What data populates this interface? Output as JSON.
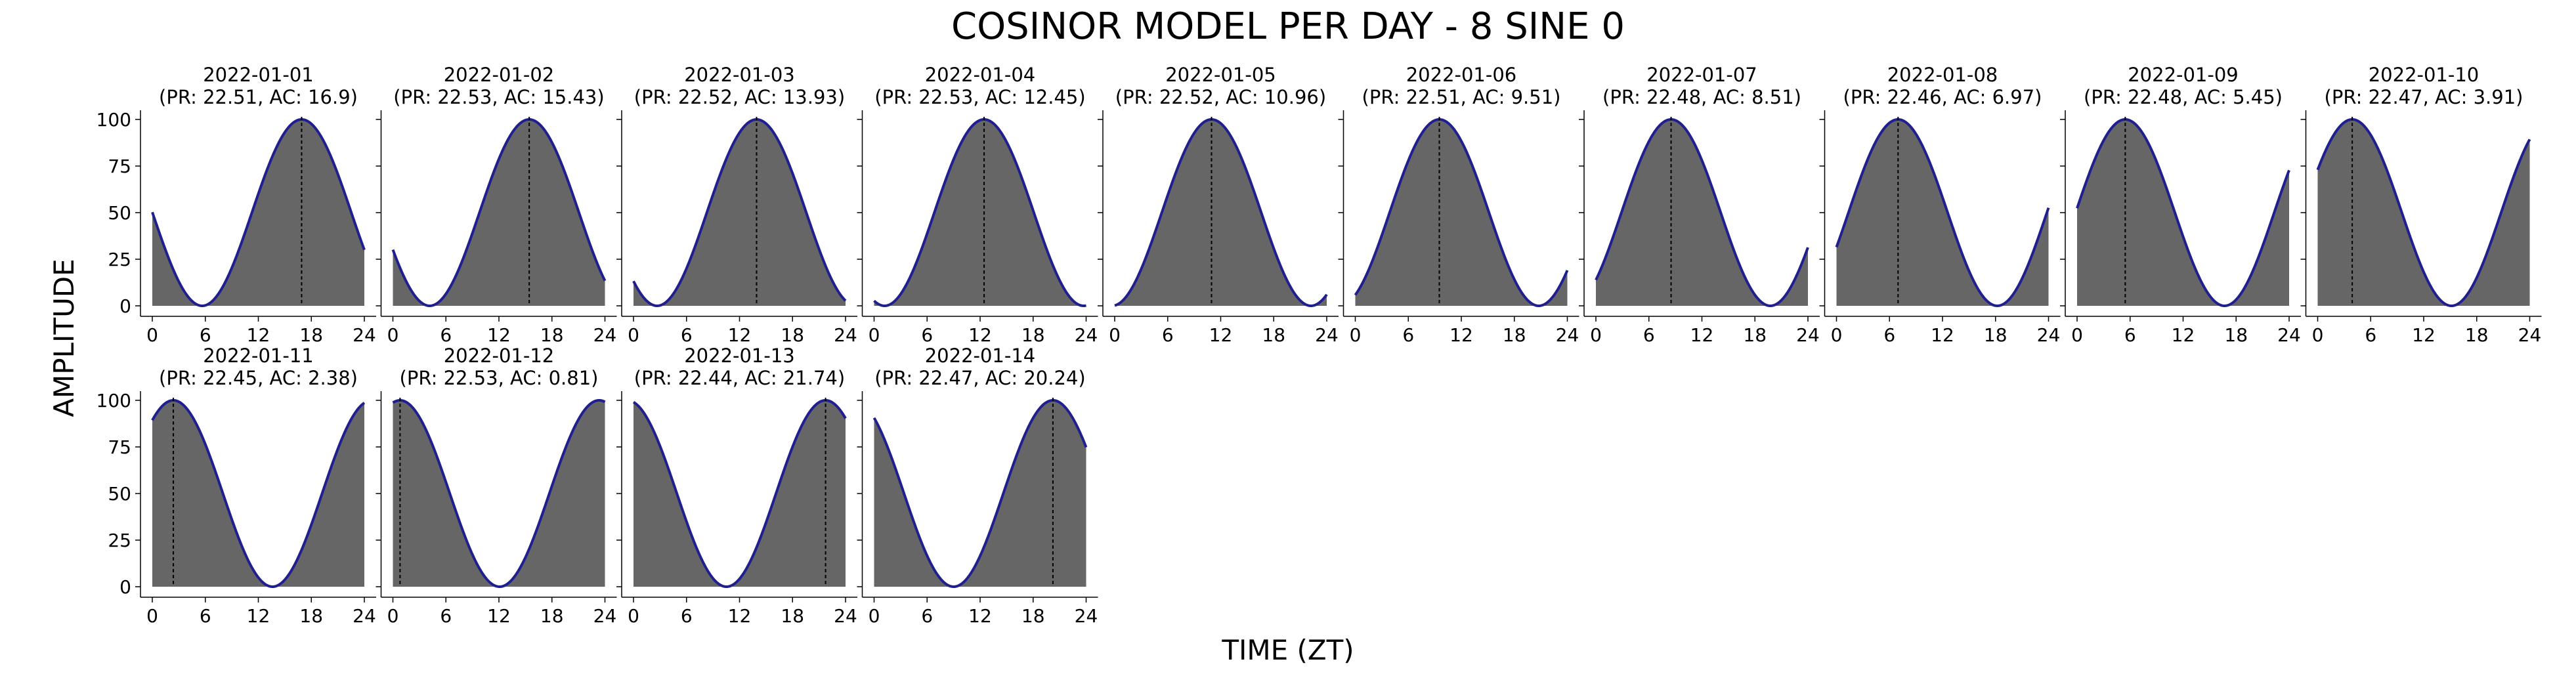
{
  "figure": {
    "title": "COSINOR MODEL PER DAY - 8 SINE 0",
    "xlabel": "TIME (ZT)",
    "ylabel": "AMPLITUDE"
  },
  "colors": {
    "fill": "#666666",
    "curve": "#1f1f8f",
    "acrophase_line": "#000000",
    "axis": "#000000"
  },
  "chart_data": {
    "type": "area",
    "x_range": [
      0,
      24
    ],
    "xticks": [
      0,
      6,
      12,
      18,
      24
    ],
    "y_range": [
      0,
      100
    ],
    "yticks": [
      0,
      25,
      50,
      75,
      100
    ],
    "model": "amplitude = 50 + 50*cos(2*pi*(t - AC)/PR)",
    "grid": false,
    "panels": [
      {
        "date": "2022-01-01",
        "label": "(PR: 22.51, AC: 16.9)",
        "PR": 22.51,
        "AC": 16.9
      },
      {
        "date": "2022-01-02",
        "label": "(PR: 22.53, AC: 15.43)",
        "PR": 22.53,
        "AC": 15.43
      },
      {
        "date": "2022-01-03",
        "label": "(PR: 22.52, AC: 13.93)",
        "PR": 22.52,
        "AC": 13.93
      },
      {
        "date": "2022-01-04",
        "label": "(PR: 22.53, AC: 12.45)",
        "PR": 22.53,
        "AC": 12.45
      },
      {
        "date": "2022-01-05",
        "label": "(PR: 22.52, AC: 10.96)",
        "PR": 22.52,
        "AC": 10.96
      },
      {
        "date": "2022-01-06",
        "label": "(PR: 22.51, AC: 9.51)",
        "PR": 22.51,
        "AC": 9.51
      },
      {
        "date": "2022-01-07",
        "label": "(PR: 22.48, AC: 8.51)",
        "PR": 22.48,
        "AC": 8.51
      },
      {
        "date": "2022-01-08",
        "label": "(PR: 22.46, AC: 6.97)",
        "PR": 22.46,
        "AC": 6.97
      },
      {
        "date": "2022-01-09",
        "label": "(PR: 22.48, AC: 5.45)",
        "PR": 22.48,
        "AC": 5.45
      },
      {
        "date": "2022-01-10",
        "label": "(PR: 22.47, AC: 3.91)",
        "PR": 22.47,
        "AC": 3.91
      },
      {
        "date": "2022-01-11",
        "label": "(PR: 22.45, AC: 2.38)",
        "PR": 22.45,
        "AC": 2.38
      },
      {
        "date": "2022-01-12",
        "label": "(PR: 22.53, AC: 0.81)",
        "PR": 22.53,
        "AC": 0.81
      },
      {
        "date": "2022-01-13",
        "label": "(PR: 22.44, AC: 21.74)",
        "PR": 22.44,
        "AC": 21.74
      },
      {
        "date": "2022-01-14",
        "label": "(PR: 22.47, AC: 20.24)",
        "PR": 22.47,
        "AC": 20.24
      }
    ]
  }
}
